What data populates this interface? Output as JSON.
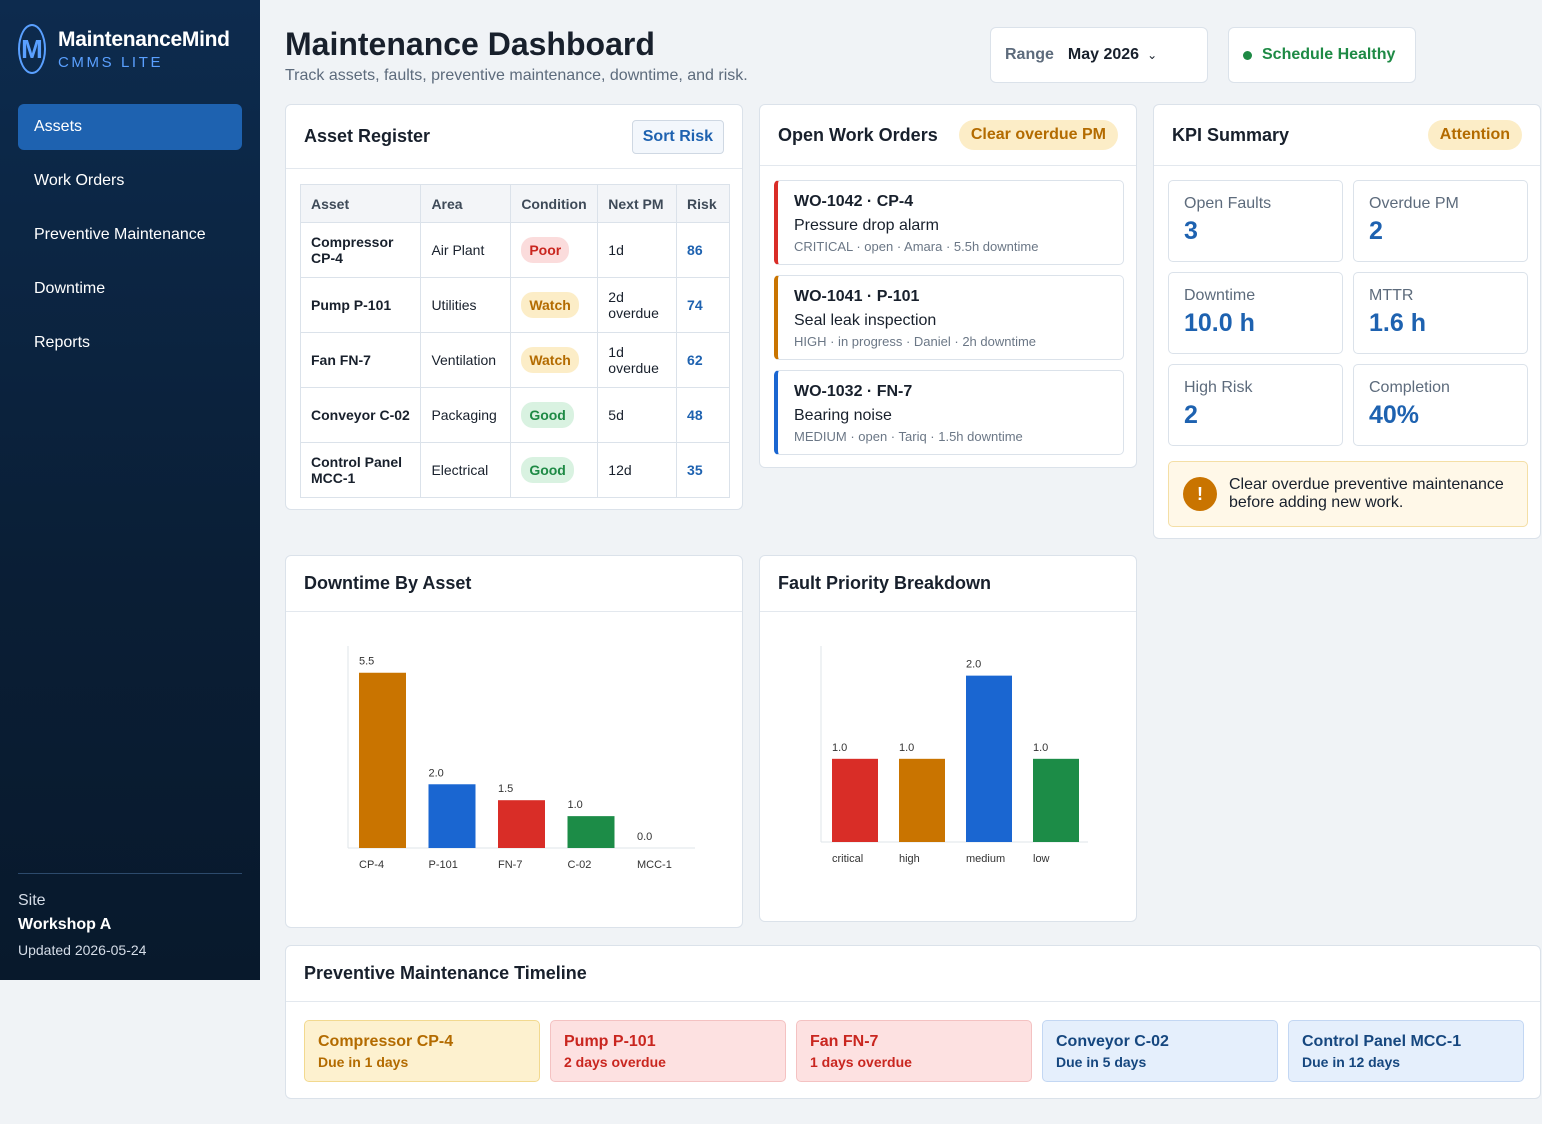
{
  "brand": {
    "name": "MaintenanceMind",
    "sub": "CMMS LITE",
    "logo_letter": "M"
  },
  "nav": [
    {
      "label": "Assets",
      "active": true
    },
    {
      "label": "Work Orders",
      "active": false
    },
    {
      "label": "Preventive Maintenance",
      "active": false
    },
    {
      "label": "Downtime",
      "active": false
    },
    {
      "label": "Reports",
      "active": false
    }
  ],
  "site": {
    "label": "Site",
    "name": "Workshop A",
    "updated": "Updated 2026-05-24"
  },
  "header": {
    "title": "Maintenance Dashboard",
    "subtitle": "Track assets, faults, preventive maintenance, downtime, and risk.",
    "range_label": "Range",
    "range_value": "May 2026",
    "status": "Schedule Healthy"
  },
  "asset_register": {
    "title": "Asset Register",
    "sort_button": "Sort Risk",
    "columns": [
      "Asset",
      "Area",
      "Condition",
      "Next PM",
      "Risk"
    ],
    "rows": [
      {
        "asset": "Compressor CP-4",
        "area": "Air Plant",
        "condition": "Poor",
        "next_pm": "1d",
        "risk": "86"
      },
      {
        "asset": "Pump P-101",
        "area": "Utilities",
        "condition": "Watch",
        "next_pm": "2d overdue",
        "risk": "74"
      },
      {
        "asset": "Fan FN-7",
        "area": "Ventilation",
        "condition": "Watch",
        "next_pm": "1d overdue",
        "risk": "62"
      },
      {
        "asset": "Conveyor C-02",
        "area": "Packaging",
        "condition": "Good",
        "next_pm": "5d",
        "risk": "48"
      },
      {
        "asset": "Control Panel MCC-1",
        "area": "Electrical",
        "condition": "Good",
        "next_pm": "12d",
        "risk": "35"
      }
    ]
  },
  "work_orders": {
    "title": "Open Work Orders",
    "action": "Clear overdue PM",
    "items": [
      {
        "head": "WO-1042 · CP-4",
        "title": "Pressure drop alarm",
        "meta": "CRITICAL · open · Amara · 5.5h downtime"
      },
      {
        "head": "WO-1041 · P-101",
        "title": "Seal leak inspection",
        "meta": "HIGH · in progress · Daniel · 2h downtime"
      },
      {
        "head": "WO-1032 · FN-7",
        "title": "Bearing noise",
        "meta": "MEDIUM · open · Tariq · 1.5h downtime"
      }
    ]
  },
  "kpi": {
    "title": "KPI Summary",
    "status": "Attention",
    "items": [
      {
        "label": "Open Faults",
        "value": "3"
      },
      {
        "label": "Overdue PM",
        "value": "2"
      },
      {
        "label": "Downtime",
        "value": "10.0 h"
      },
      {
        "label": "MTTR",
        "value": "1.6 h"
      },
      {
        "label": "High Risk",
        "value": "2"
      },
      {
        "label": "Completion",
        "value": "40%"
      }
    ],
    "alert_icon": "!",
    "alert": "Clear overdue preventive maintenance before adding new work."
  },
  "chart_data": [
    {
      "type": "bar",
      "title": "Downtime By Asset",
      "categories": [
        "CP-4",
        "P-101",
        "FN-7",
        "C-02",
        "MCC-1"
      ],
      "values": [
        5.5,
        2.0,
        1.5,
        1.0,
        0.0
      ],
      "value_labels": [
        "5.5",
        "2.0",
        "1.5",
        "1.0",
        "0.0"
      ],
      "colors": [
        "#c97400",
        "#1a66d1",
        "#d92d27",
        "#1c8c47",
        "#9aa5b1"
      ],
      "ylim": [
        0,
        5.9
      ],
      "grid": false
    },
    {
      "type": "bar",
      "title": "Fault Priority Breakdown",
      "categories": [
        "critical",
        "high",
        "medium",
        "low"
      ],
      "values": [
        1.0,
        1.0,
        2.0,
        1.0
      ],
      "value_labels": [
        "1.0",
        "1.0",
        "2.0",
        "1.0"
      ],
      "colors": [
        "#d92d27",
        "#c97400",
        "#1a66d1",
        "#1c8c47"
      ],
      "ylim": [
        0,
        2.2
      ],
      "grid": false
    }
  ],
  "timeline": {
    "title": "Preventive Maintenance Timeline",
    "items": [
      {
        "name": "Compressor CP-4",
        "due": "Due in 1 days",
        "status": "amber"
      },
      {
        "name": "Pump P-101",
        "due": "2 days overdue",
        "status": "red"
      },
      {
        "name": "Fan FN-7",
        "due": "1 days overdue",
        "status": "red"
      },
      {
        "name": "Conveyor C-02",
        "due": "Due in 5 days",
        "status": "blue"
      },
      {
        "name": "Control Panel MCC-1",
        "due": "Due in 12 days",
        "status": "blue"
      }
    ]
  }
}
